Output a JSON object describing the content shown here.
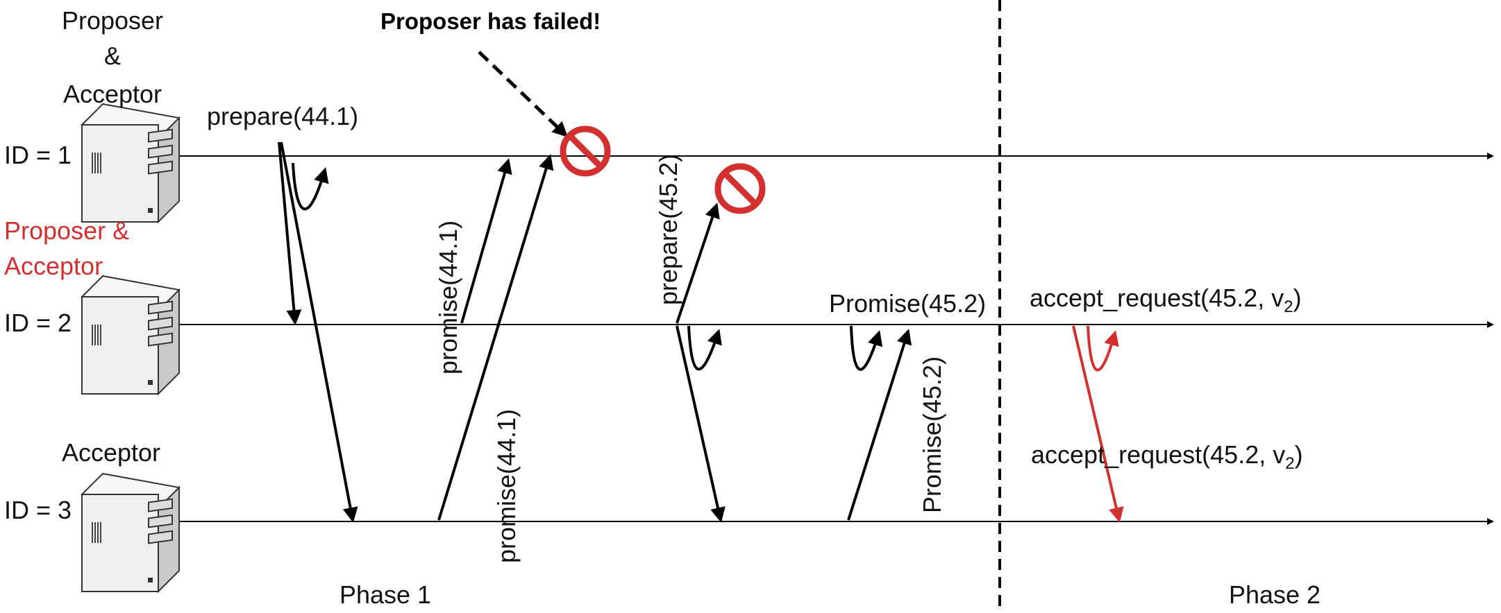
{
  "diagram": {
    "title": "Proposer has failed!",
    "nodes": [
      {
        "role_line1": "Proposer",
        "role_line2": "&",
        "role_line3": "Acceptor",
        "id_label": "ID = 1"
      },
      {
        "role_line1": "Proposer &",
        "role_line2": "Acceptor",
        "id_label": "ID = 2"
      },
      {
        "role_line1": "Acceptor",
        "id_label": "ID = 3"
      }
    ],
    "messages": {
      "prepare_441": "prepare(44.1)",
      "promise_441_a": "promise(44.1)",
      "promise_441_b": "promise(44.1)",
      "prepare_452": "prepare(45.2)",
      "promise_452_a": "Promise(45.2)",
      "promise_452_b": "Promise(45.2)",
      "accept_request_a": "accept_request(45.2, v",
      "accept_request_b": "accept_request(45.2, v",
      "subscript": "2",
      "closing_paren": ")"
    },
    "phases": {
      "phase1": "Phase 1",
      "phase2": "Phase 2"
    },
    "colors": {
      "ink": "#000000",
      "accent": "#d32f2f",
      "server_body": "#f2f2f2"
    }
  }
}
